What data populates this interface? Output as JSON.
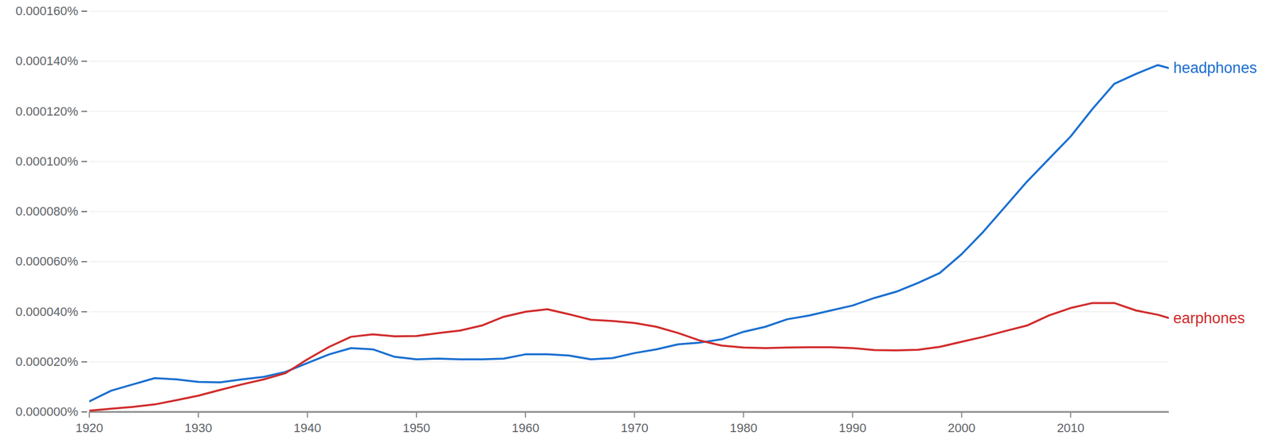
{
  "chart_data": {
    "type": "line",
    "x": [
      1920,
      1922,
      1924,
      1926,
      1928,
      1930,
      1932,
      1934,
      1936,
      1938,
      1940,
      1942,
      1944,
      1946,
      1948,
      1950,
      1952,
      1954,
      1956,
      1958,
      1960,
      1962,
      1964,
      1966,
      1968,
      1970,
      1972,
      1974,
      1976,
      1978,
      1980,
      1982,
      1984,
      1986,
      1988,
      1990,
      1992,
      1994,
      1996,
      1998,
      2000,
      2002,
      2004,
      2006,
      2008,
      2010,
      2012,
      2014,
      2016,
      2018,
      2019
    ],
    "xlim": [
      1920,
      2019
    ],
    "xticks": [
      1920,
      1930,
      1940,
      1950,
      1960,
      1970,
      1980,
      1990,
      2000,
      2010
    ],
    "ylim": [
      0,
      0.00016
    ],
    "yticks": [
      {
        "value": 0,
        "label": "0.000000%"
      },
      {
        "value": 2e-05,
        "label": "0.000020%"
      },
      {
        "value": 4e-05,
        "label": "0.000040%"
      },
      {
        "value": 6e-05,
        "label": "0.000060%"
      },
      {
        "value": 8e-05,
        "label": "0.000080%"
      },
      {
        "value": 0.0001,
        "label": "0.000100%"
      },
      {
        "value": 0.00012,
        "label": "0.000120%"
      },
      {
        "value": 0.00014,
        "label": "0.000140%"
      },
      {
        "value": 0.00016,
        "label": "0.000160%"
      }
    ],
    "grid": true,
    "series": [
      {
        "name": "headphones",
        "color": "#1a6fd0",
        "values": [
          4.2e-06,
          8.5e-06,
          1.1e-05,
          1.35e-05,
          1.3e-05,
          1.2e-05,
          1.18e-05,
          1.3e-05,
          1.4e-05,
          1.6e-05,
          1.95e-05,
          2.3e-05,
          2.55e-05,
          2.5e-05,
          2.2e-05,
          2.1e-05,
          2.13e-05,
          2.1e-05,
          2.1e-05,
          2.13e-05,
          2.3e-05,
          2.3e-05,
          2.25e-05,
          2.1e-05,
          2.15e-05,
          2.35e-05,
          2.5e-05,
          2.7e-05,
          2.77e-05,
          2.9e-05,
          3.2e-05,
          3.4e-05,
          3.7e-05,
          3.85e-05,
          4.05e-05,
          4.25e-05,
          4.55e-05,
          4.8e-05,
          5.15e-05,
          5.55e-05,
          6.3e-05,
          7.2e-05,
          8.2e-05,
          9.2e-05,
          0.000101,
          0.00011,
          0.000121,
          0.000131,
          0.000135,
          0.0001385,
          0.0001373
        ]
      },
      {
        "name": "earphones",
        "color": "#d12b2b",
        "values": [
          5e-07,
          1.3e-06,
          2e-06,
          3e-06,
          4.7e-06,
          6.5e-06,
          8.8e-06,
          1.1e-05,
          1.3e-05,
          1.55e-05,
          2.1e-05,
          2.6e-05,
          3e-05,
          3.1e-05,
          3.02e-05,
          3.03e-05,
          3.15e-05,
          3.25e-05,
          3.45e-05,
          3.8e-05,
          4e-05,
          4.1e-05,
          3.9e-05,
          3.68e-05,
          3.63e-05,
          3.55e-05,
          3.4e-05,
          3.15e-05,
          2.85e-05,
          2.65e-05,
          2.57e-05,
          2.55e-05,
          2.57e-05,
          2.58e-05,
          2.58e-05,
          2.55e-05,
          2.47e-05,
          2.46e-05,
          2.48e-05,
          2.6e-05,
          2.8e-05,
          3e-05,
          3.23e-05,
          3.45e-05,
          3.85e-05,
          4.15e-05,
          4.35e-05,
          4.35e-05,
          4.05e-05,
          3.88e-05,
          3.75e-05
        ]
      }
    ]
  }
}
